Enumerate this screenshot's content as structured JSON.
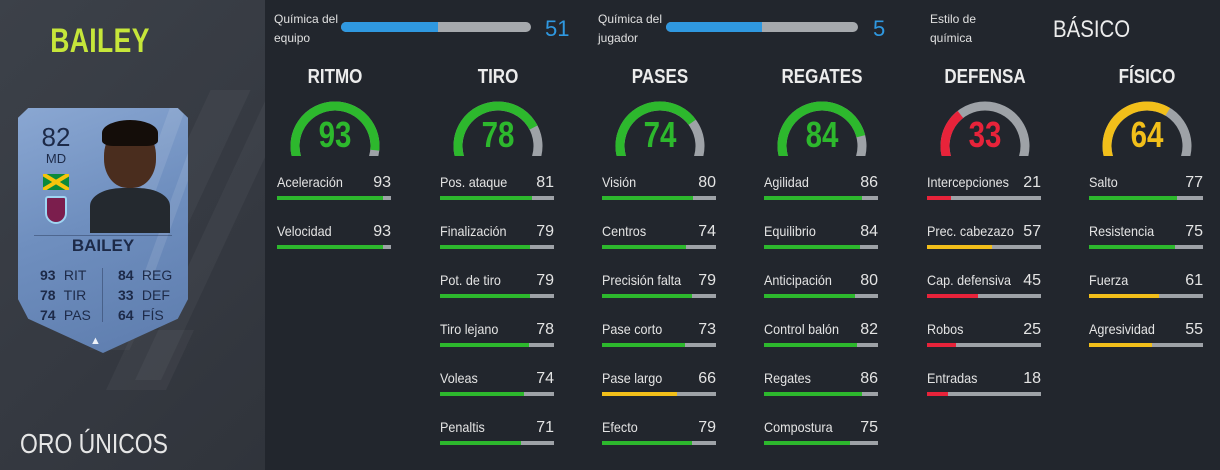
{
  "player": {
    "name": "BAILEY",
    "card_type": "ORO ÚNICOS"
  },
  "card": {
    "rating": "82",
    "position": "MD",
    "name": "BAILEY",
    "stats": [
      {
        "value": "93",
        "label": "RIT"
      },
      {
        "value": "78",
        "label": "TIR"
      },
      {
        "value": "74",
        "label": "PAS"
      },
      {
        "value": "84",
        "label": "REG"
      },
      {
        "value": "33",
        "label": "DEF"
      },
      {
        "value": "64",
        "label": "FÍS"
      }
    ]
  },
  "chemistry": {
    "team_label_1": "Química del",
    "team_label_2": "equipo",
    "team_value": "51",
    "team_fraction": 0.51,
    "player_label_1": "Química del",
    "player_label_2": "jugador",
    "player_value": "5",
    "player_fraction": 0.5,
    "style_label_1": "Estilo de",
    "style_label_2": "química",
    "style_value": "BÁSICO"
  },
  "colors": {
    "green": "#2db82d",
    "yellow": "#f2bf1a",
    "red": "#e8233a",
    "blue": "#2f98e0",
    "track": "#9ea2a7"
  },
  "categories": [
    {
      "title": "RITMO",
      "value": 93,
      "stats": [
        {
          "label": "Aceleración",
          "value": 93
        },
        {
          "label": "Velocidad",
          "value": 93
        }
      ]
    },
    {
      "title": "TIRO",
      "value": 78,
      "stats": [
        {
          "label": "Pos. ataque",
          "value": 81
        },
        {
          "label": "Finalización",
          "value": 79
        },
        {
          "label": "Pot. de tiro",
          "value": 79
        },
        {
          "label": "Tiro lejano",
          "value": 78
        },
        {
          "label": "Voleas",
          "value": 74
        },
        {
          "label": "Penaltis",
          "value": 71
        }
      ]
    },
    {
      "title": "PASES",
      "value": 74,
      "stats": [
        {
          "label": "Visión",
          "value": 80
        },
        {
          "label": "Centros",
          "value": 74
        },
        {
          "label": "Precisión falta",
          "value": 79
        },
        {
          "label": "Pase corto",
          "value": 73
        },
        {
          "label": "Pase largo",
          "value": 66
        },
        {
          "label": "Efecto",
          "value": 79
        }
      ]
    },
    {
      "title": "REGATES",
      "value": 84,
      "stats": [
        {
          "label": "Agilidad",
          "value": 86
        },
        {
          "label": "Equilibrio",
          "value": 84
        },
        {
          "label": "Anticipación",
          "value": 80
        },
        {
          "label": "Control balón",
          "value": 82
        },
        {
          "label": "Regates",
          "value": 86
        },
        {
          "label": "Compostura",
          "value": 75
        }
      ]
    },
    {
      "title": "DEFENSA",
      "value": 33,
      "stats": [
        {
          "label": "Intercepciones",
          "value": 21
        },
        {
          "label": "Prec. cabezazo",
          "value": 57
        },
        {
          "label": "Cap. defensiva",
          "value": 45
        },
        {
          "label": "Robos",
          "value": 25
        },
        {
          "label": "Entradas",
          "value": 18
        }
      ]
    },
    {
      "title": "FÍSICO",
      "value": 64,
      "stats": [
        {
          "label": "Salto",
          "value": 77
        },
        {
          "label": "Resistencia",
          "value": 75
        },
        {
          "label": "Fuerza",
          "value": 61
        },
        {
          "label": "Agresividad",
          "value": 55
        }
      ]
    }
  ]
}
